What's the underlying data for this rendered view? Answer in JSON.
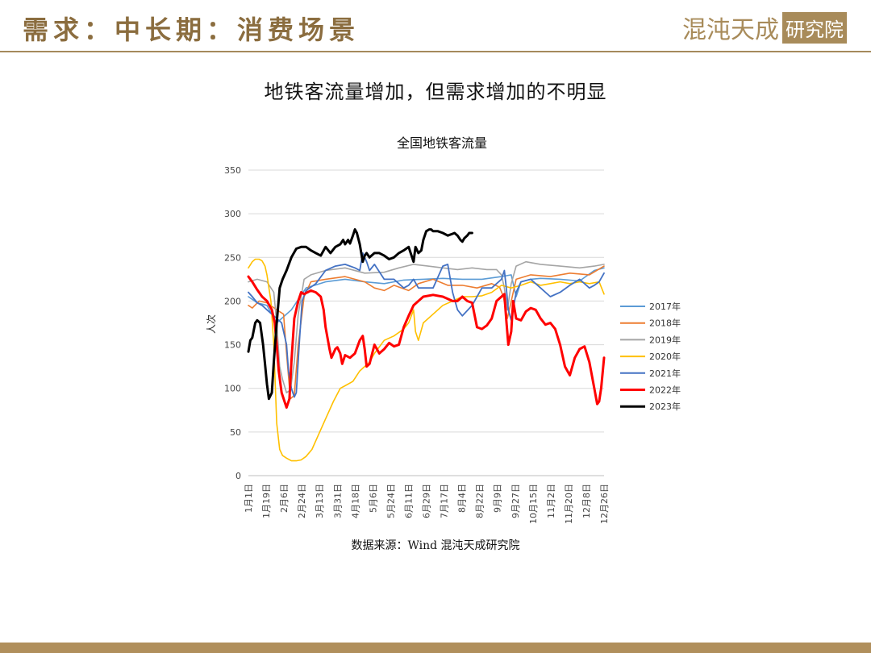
{
  "header": {
    "title": "需求：中长期：消费场景",
    "logo_text": "混沌天成",
    "logo_box_text": "研究院"
  },
  "slide_title": "地铁客流量增加，但需求增加的不明显",
  "source": "数据来源：Wind 混沌天成研究院",
  "colors": {
    "header_gold": "#8b6d3f",
    "footer_gold": "#b08f5c"
  },
  "chart_data": {
    "type": "line",
    "title": "全国地铁客流量",
    "ylabel": "人次",
    "xlabel": "",
    "ylim": [
      0,
      350
    ],
    "yticks": [
      0,
      50,
      100,
      150,
      200,
      250,
      300,
      350
    ],
    "grid": true,
    "legend_position": "right",
    "x_day_range": [
      1,
      365
    ],
    "x_tick_labels": [
      "1月1日",
      "1月19日",
      "2月6日",
      "2月24日",
      "3月13日",
      "3月31日",
      "4月18日",
      "5月6日",
      "5月24日",
      "6月11日",
      "6月29日",
      "7月17日",
      "8月4日",
      "8月22日",
      "9月9日",
      "9月27日",
      "10月15日",
      "11月2日",
      "11月20日",
      "12月8日",
      "12月26日"
    ],
    "series": [
      {
        "name": "2017年",
        "color": "#5b9bd5",
        "width": 1.6,
        "x": [
          1,
          10,
          20,
          30,
          45,
          60,
          80,
          100,
          120,
          140,
          160,
          180,
          200,
          220,
          240,
          260,
          270,
          275,
          280,
          290,
          300,
          320,
          340,
          355,
          365
        ],
        "y": [
          205,
          198,
          195,
          175,
          190,
          215,
          222,
          225,
          222,
          220,
          224,
          225,
          226,
          225,
          225,
          228,
          230,
          205,
          222,
          225,
          226,
          225,
          223,
          235,
          238
        ]
      },
      {
        "name": "2018年",
        "color": "#ed7d31",
        "width": 1.6,
        "x": [
          1,
          5,
          12,
          20,
          30,
          37,
          40,
          44,
          48,
          52,
          58,
          65,
          80,
          100,
          120,
          130,
          140,
          150,
          165,
          175,
          190,
          205,
          220,
          235,
          250,
          258,
          262,
          266,
          275,
          290,
          310,
          330,
          350,
          365
        ],
        "y": [
          195,
          192,
          200,
          198,
          190,
          185,
          140,
          88,
          92,
          150,
          205,
          222,
          225,
          228,
          222,
          215,
          212,
          218,
          212,
          220,
          225,
          218,
          218,
          215,
          220,
          216,
          205,
          180,
          225,
          230,
          228,
          232,
          230,
          240
        ]
      },
      {
        "name": "2019年",
        "color": "#a5a5a5",
        "width": 1.6,
        "x": [
          1,
          10,
          20,
          27,
          30,
          33,
          36,
          40,
          44,
          48,
          52,
          58,
          65,
          80,
          100,
          120,
          140,
          155,
          170,
          185,
          200,
          215,
          230,
          245,
          255,
          260,
          263,
          266,
          270,
          275,
          285,
          300,
          320,
          340,
          355,
          365
        ],
        "y": [
          222,
          225,
          222,
          210,
          175,
          125,
          110,
          95,
          98,
          130,
          185,
          225,
          230,
          235,
          238,
          232,
          233,
          238,
          242,
          240,
          238,
          236,
          238,
          236,
          236,
          230,
          215,
          190,
          220,
          240,
          245,
          242,
          240,
          238,
          240,
          242
        ]
      },
      {
        "name": "2020年",
        "color": "#ffc000",
        "width": 1.6,
        "x": [
          1,
          5,
          8,
          12,
          15,
          18,
          20,
          24,
          27,
          30,
          33,
          36,
          40,
          45,
          50,
          55,
          60,
          66,
          72,
          80,
          88,
          95,
          100,
          108,
          115,
          120,
          125,
          130,
          140,
          150,
          160,
          165,
          170,
          172,
          175,
          180,
          190,
          200,
          210,
          220,
          230,
          240,
          250,
          260,
          270,
          280,
          290,
          300,
          310,
          320,
          330,
          340,
          350,
          360,
          365
        ],
        "y": [
          238,
          245,
          248,
          248,
          246,
          240,
          230,
          200,
          150,
          60,
          30,
          23,
          20,
          17,
          17,
          18,
          22,
          30,
          45,
          65,
          85,
          100,
          103,
          108,
          120,
          125,
          130,
          140,
          155,
          160,
          168,
          175,
          190,
          165,
          155,
          175,
          185,
          195,
          200,
          205,
          205,
          206,
          210,
          218,
          215,
          218,
          222,
          218,
          220,
          222,
          220,
          222,
          220,
          222,
          208
        ]
      },
      {
        "name": "2021年",
        "color": "#4472c4",
        "width": 1.8,
        "x": [
          1,
          5,
          10,
          15,
          20,
          25,
          30,
          35,
          40,
          42,
          45,
          48,
          50,
          53,
          56,
          60,
          70,
          80,
          90,
          100,
          110,
          115,
          118,
          122,
          125,
          130,
          140,
          150,
          160,
          165,
          170,
          175,
          180,
          190,
          200,
          205,
          210,
          215,
          220,
          230,
          240,
          250,
          260,
          263,
          265,
          267,
          270,
          275,
          280,
          290,
          300,
          310,
          320,
          330,
          340,
          350,
          355,
          360,
          365
        ],
        "y": [
          210,
          205,
          198,
          195,
          190,
          185,
          180,
          175,
          150,
          120,
          100,
          90,
          95,
          150,
          200,
          212,
          220,
          235,
          240,
          242,
          238,
          235,
          255,
          245,
          235,
          242,
          225,
          225,
          215,
          218,
          225,
          215,
          215,
          215,
          240,
          242,
          210,
          190,
          183,
          195,
          215,
          215,
          225,
          235,
          215,
          190,
          178,
          210,
          222,
          225,
          215,
          205,
          210,
          218,
          225,
          215,
          218,
          222,
          232
        ]
      },
      {
        "name": "2022年",
        "color": "#ff0000",
        "width": 3,
        "x": [
          1,
          5,
          10,
          15,
          20,
          25,
          28,
          30,
          32,
          35,
          38,
          40,
          43,
          45,
          48,
          52,
          55,
          58,
          65,
          70,
          75,
          78,
          80,
          84,
          86,
          88,
          90,
          92,
          95,
          97,
          100,
          105,
          110,
          115,
          118,
          120,
          122,
          125,
          130,
          135,
          140,
          145,
          150,
          155,
          160,
          165,
          170,
          175,
          180,
          190,
          200,
          210,
          215,
          220,
          225,
          230,
          235,
          240,
          245,
          250,
          255,
          260,
          263,
          265,
          267,
          270,
          272,
          275,
          280,
          285,
          290,
          295,
          300,
          305,
          310,
          315,
          320,
          325,
          330,
          335,
          340,
          345,
          350,
          355,
          358,
          360,
          362,
          365
        ],
        "y": [
          228,
          222,
          213,
          205,
          200,
          190,
          175,
          150,
          120,
          95,
          85,
          78,
          88,
          130,
          180,
          200,
          210,
          208,
          212,
          210,
          205,
          190,
          170,
          145,
          135,
          140,
          145,
          147,
          140,
          128,
          138,
          135,
          140,
          155,
          160,
          145,
          125,
          128,
          150,
          140,
          145,
          152,
          148,
          150,
          170,
          183,
          195,
          200,
          205,
          207,
          205,
          200,
          200,
          205,
          200,
          198,
          170,
          168,
          172,
          180,
          200,
          205,
          208,
          178,
          150,
          165,
          200,
          180,
          178,
          188,
          192,
          190,
          180,
          173,
          175,
          168,
          150,
          125,
          115,
          135,
          145,
          148,
          130,
          100,
          82,
          85,
          100,
          135
        ]
      },
      {
        "name": "2023年",
        "color": "#000000",
        "width": 3,
        "x": [
          1,
          3,
          5,
          8,
          10,
          13,
          16,
          18,
          20,
          22,
          25,
          27,
          30,
          33,
          36,
          40,
          45,
          50,
          55,
          60,
          65,
          70,
          75,
          80,
          85,
          90,
          95,
          98,
          100,
          103,
          105,
          108,
          110,
          112,
          115,
          118,
          120,
          122,
          125,
          130,
          135,
          140,
          145,
          150,
          155,
          160,
          165,
          170,
          172,
          175,
          178,
          180,
          183,
          186,
          188,
          190,
          195,
          200,
          205,
          210,
          212,
          215,
          218,
          220,
          222,
          225,
          227,
          230
        ],
        "y": [
          142,
          155,
          158,
          175,
          178,
          175,
          150,
          128,
          105,
          88,
          95,
          130,
          175,
          215,
          225,
          235,
          250,
          260,
          262,
          262,
          258,
          255,
          252,
          262,
          255,
          262,
          265,
          270,
          265,
          270,
          266,
          275,
          282,
          278,
          265,
          245,
          252,
          255,
          250,
          255,
          255,
          252,
          248,
          250,
          255,
          258,
          262,
          245,
          262,
          255,
          258,
          270,
          280,
          282,
          282,
          280,
          280,
          278,
          275,
          277,
          278,
          275,
          270,
          268,
          272,
          275,
          278,
          278
        ]
      }
    ]
  }
}
